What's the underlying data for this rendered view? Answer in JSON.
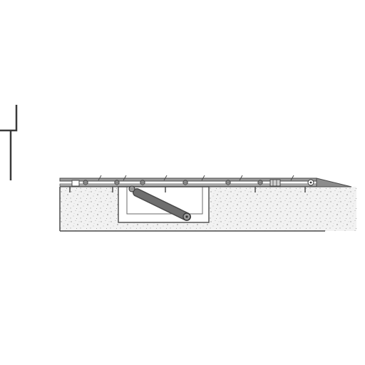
{
  "drawing": {
    "colors": {
      "background": "#ffffff",
      "outline": "#4a4a4a",
      "steel": "#7a7a7a",
      "steel_dark": "#555555",
      "concrete": "#f2f2f2",
      "speckle": "#9a9a9a",
      "pit_fill": "#ffffff",
      "arm": "#6a6a6a",
      "ramp": "#8c8c8c"
    },
    "parts": {
      "wall_profile": "wall-profile",
      "concrete_slab": "concrete-slab",
      "pit": "recessed-pit",
      "deck": "top-plate",
      "hinge_arm": "hinge-arm",
      "ramp": "end-ramp",
      "bolts": "fastener-bolts",
      "anchors": "anchor-pins"
    }
  }
}
